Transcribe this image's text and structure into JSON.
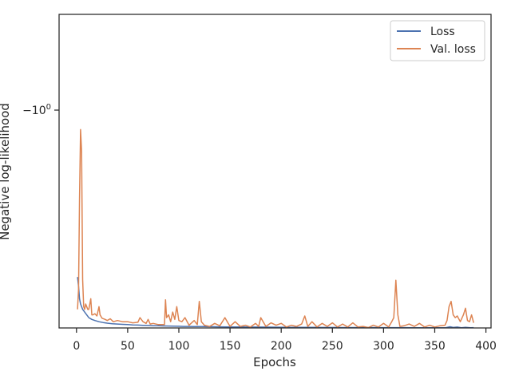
{
  "chart_data": {
    "type": "line",
    "title": "",
    "xlabel": "Epochs",
    "ylabel": "Negative log-likelihood",
    "xlim": [
      -17,
      405
    ],
    "xticks": [
      0,
      50,
      100,
      150,
      200,
      250,
      300,
      350,
      400
    ],
    "xtick_labels": [
      "0",
      "50",
      "100",
      "150",
      "200",
      "250",
      "300",
      "350",
      "400"
    ],
    "ytick_label_main": "−10",
    "ytick_label_exp": "0",
    "yscale": "symlog",
    "grid": false,
    "legend_position": "top-right",
    "series": [
      {
        "name": "Loss",
        "color": "#4c72b0",
        "x": [
          1,
          2,
          3,
          4,
          5,
          6,
          8,
          10,
          12,
          15,
          18,
          22,
          26,
          30,
          35,
          40,
          45,
          50,
          55,
          60,
          65,
          70,
          75,
          80,
          85,
          90,
          95,
          100,
          105,
          110,
          115,
          120,
          125,
          130,
          140,
          150,
          160,
          170,
          180,
          190,
          200,
          210,
          220,
          230,
          240,
          250,
          260,
          270,
          280,
          290,
          300,
          310,
          320,
          330,
          340,
          350,
          360,
          365,
          368,
          372,
          376,
          380,
          385,
          388
        ],
        "y": [
          -0.405,
          -0.385,
          -0.36,
          -0.35,
          -0.345,
          -0.34,
          -0.335,
          -0.33,
          -0.325,
          -0.322,
          -0.32,
          -0.318,
          -0.3165,
          -0.3155,
          -0.3145,
          -0.314,
          -0.3135,
          -0.313,
          -0.3125,
          -0.3122,
          -0.3118,
          -0.3115,
          -0.3112,
          -0.311,
          -0.3108,
          -0.3106,
          -0.3104,
          -0.3102,
          -0.31,
          -0.3099,
          -0.3098,
          -0.3097,
          -0.3096,
          -0.3095,
          -0.3093,
          -0.3091,
          -0.309,
          -0.3089,
          -0.3088,
          -0.3087,
          -0.3086,
          -0.3085,
          -0.3084,
          -0.3083,
          -0.3082,
          -0.3082,
          -0.3081,
          -0.3081,
          -0.308,
          -0.308,
          -0.3079,
          -0.3079,
          -0.3079,
          -0.3078,
          -0.3078,
          -0.3078,
          -0.3077,
          -0.3094,
          -0.3082,
          -0.3088,
          -0.3078,
          -0.3085,
          -0.3077,
          -0.3079
        ]
      },
      {
        "name": "Val. loss",
        "color": "#dd8452",
        "x": [
          1,
          2,
          3,
          4,
          5,
          6,
          7,
          8,
          9,
          10,
          11,
          12,
          13,
          14,
          15,
          16,
          18,
          20,
          22,
          23,
          25,
          28,
          30,
          33,
          36,
          40,
          45,
          50,
          55,
          60,
          62,
          65,
          68,
          70,
          72,
          75,
          80,
          86,
          87,
          88,
          90,
          92,
          94,
          96,
          98,
          100,
          103,
          106,
          110,
          115,
          118,
          120,
          122,
          125,
          130,
          135,
          140,
          145,
          150,
          155,
          160,
          165,
          170,
          175,
          178,
          180,
          185,
          190,
          195,
          200,
          205,
          210,
          215,
          220,
          223,
          226,
          230,
          235,
          240,
          245,
          250,
          255,
          260,
          265,
          270,
          275,
          280,
          285,
          290,
          295,
          300,
          305,
          308,
          310,
          312,
          314,
          316,
          320,
          325,
          330,
          335,
          340,
          345,
          350,
          355,
          360,
          362,
          364,
          366,
          368,
          370,
          372,
          375,
          378,
          380,
          382,
          384,
          386,
          388
        ],
        "y": [
          -0.34,
          -0.38,
          -0.62,
          -0.9,
          -0.8,
          -0.4,
          -0.345,
          -0.34,
          -0.35,
          -0.345,
          -0.34,
          -0.34,
          -0.35,
          -0.36,
          -0.33,
          -0.33,
          -0.332,
          -0.328,
          -0.345,
          -0.33,
          -0.324,
          -0.322,
          -0.32,
          -0.323,
          -0.318,
          -0.32,
          -0.318,
          -0.318,
          -0.316,
          -0.317,
          -0.325,
          -0.318,
          -0.315,
          -0.322,
          -0.314,
          -0.315,
          -0.313,
          -0.313,
          -0.358,
          -0.325,
          -0.33,
          -0.318,
          -0.335,
          -0.322,
          -0.345,
          -0.32,
          -0.318,
          -0.325,
          -0.312,
          -0.32,
          -0.313,
          -0.355,
          -0.318,
          -0.312,
          -0.31,
          -0.315,
          -0.311,
          -0.325,
          -0.31,
          -0.318,
          -0.31,
          -0.312,
          -0.309,
          -0.315,
          -0.31,
          -0.325,
          -0.31,
          -0.316,
          -0.312,
          -0.315,
          -0.309,
          -0.312,
          -0.31,
          -0.314,
          -0.328,
          -0.31,
          -0.318,
          -0.309,
          -0.315,
          -0.31,
          -0.316,
          -0.309,
          -0.314,
          -0.309,
          -0.316,
          -0.309,
          -0.31,
          -0.308,
          -0.312,
          -0.309,
          -0.315,
          -0.309,
          -0.318,
          -0.325,
          -0.398,
          -0.33,
          -0.31,
          -0.311,
          -0.314,
          -0.31,
          -0.315,
          -0.309,
          -0.312,
          -0.309,
          -0.311,
          -0.312,
          -0.32,
          -0.345,
          -0.355,
          -0.33,
          -0.325,
          -0.328,
          -0.318,
          -0.33,
          -0.342,
          -0.32,
          -0.318,
          -0.33,
          -0.316
        ]
      }
    ]
  }
}
